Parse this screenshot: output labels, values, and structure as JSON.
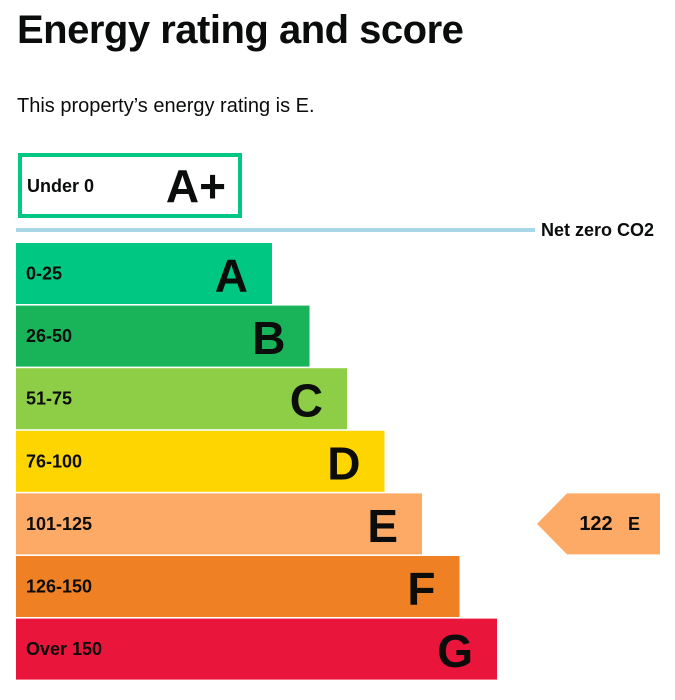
{
  "header": {
    "title": "Energy rating and score",
    "intro": "This property’s energy rating is E."
  },
  "top_band": {
    "range": "Under 0",
    "letter": "A+"
  },
  "net_zero_label": "Net zero CO2",
  "bands": [
    {
      "range": "0-25",
      "letter": "A",
      "color": "#00c781"
    },
    {
      "range": "26-50",
      "letter": "B",
      "color": "#19b459"
    },
    {
      "range": "51-75",
      "letter": "C",
      "color": "#8dce46"
    },
    {
      "range": "76-100",
      "letter": "D",
      "color": "#ffd500"
    },
    {
      "range": "101-125",
      "letter": "E",
      "color": "#fcaa65"
    },
    {
      "range": "126-150",
      "letter": "F",
      "color": "#ef8023"
    },
    {
      "range": "Over 150",
      "letter": "G",
      "color": "#e9153b"
    }
  ],
  "current_rating": {
    "score": 122,
    "letter": "E",
    "band_index": 4
  }
}
